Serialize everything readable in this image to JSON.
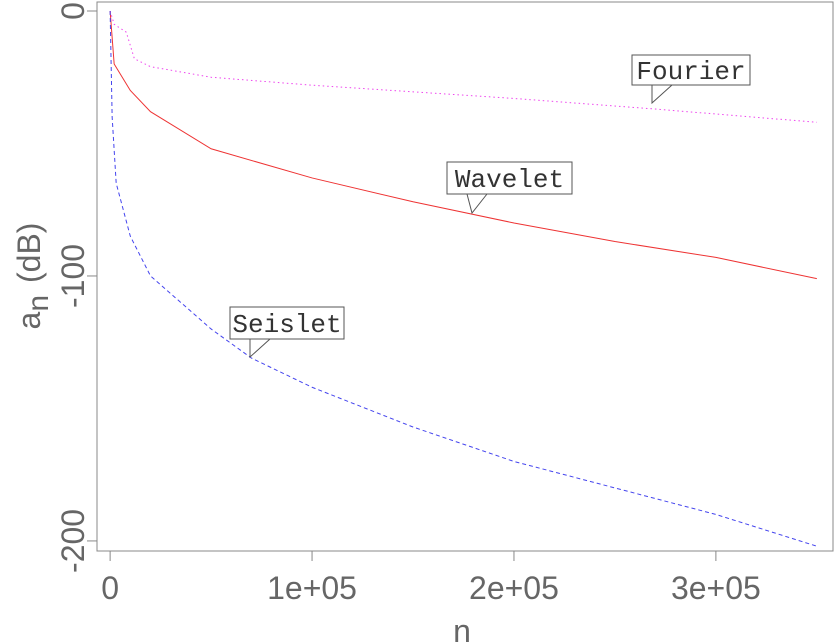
{
  "chart_data": {
    "type": "line",
    "xlabel": "n",
    "ylabel": {
      "base": "a",
      "sub": "n",
      "unit": "(dB)"
    },
    "xlim": [
      -6500,
      358000
    ],
    "ylim": [
      -203.8,
      3.4
    ],
    "xticks": [
      0,
      {
        "value": 100000,
        "label": "1e+05"
      },
      {
        "value": 200000,
        "label": "2e+05"
      },
      {
        "value": 300000,
        "label": "3e+05"
      }
    ],
    "yticks": [
      0,
      -100,
      -200
    ],
    "series": [
      {
        "name": "Fourier",
        "color": "#ee44ee",
        "dash": "1.5,3",
        "x": [
          0,
          2000,
          8000,
          12000,
          20000,
          50000,
          100000,
          150000,
          200000,
          270000,
          350000
        ],
        "values": [
          0,
          -5,
          -8,
          -18,
          -21,
          -25,
          -28,
          -30.5,
          -33,
          -37,
          -42
        ]
      },
      {
        "name": "Wavelet",
        "color": "#ee3333",
        "dash": "",
        "x": [
          0,
          2000,
          10000,
          20000,
          50000,
          100000,
          150000,
          200000,
          250000,
          300000,
          350000
        ],
        "values": [
          0,
          -20,
          -30,
          -38,
          -52,
          -63,
          -72,
          -80,
          -87,
          -93,
          -101
        ]
      },
      {
        "name": "Seislet",
        "color": "#4444ee",
        "dash": "4,3",
        "x": [
          0,
          1000,
          3000,
          10000,
          20000,
          50000,
          70000,
          100000,
          150000,
          200000,
          250000,
          300000,
          350000
        ],
        "values": [
          0,
          -40,
          -65,
          -85,
          -100,
          -120,
          -131,
          -142,
          -157,
          -170,
          -180,
          -190,
          -202
        ]
      }
    ]
  }
}
